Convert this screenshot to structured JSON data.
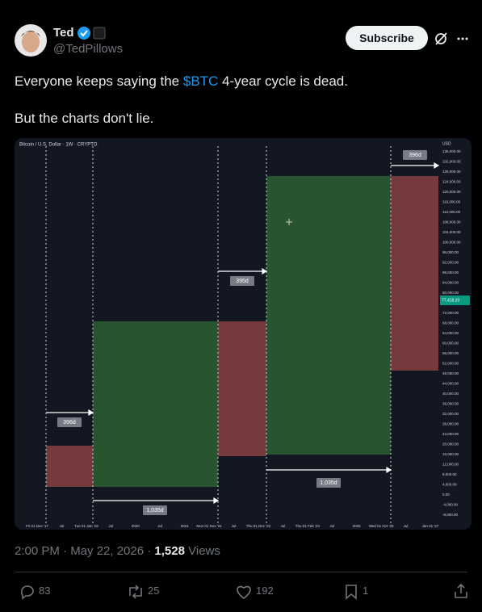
{
  "tweet": {
    "author_name": "Ted",
    "handle": "@TedPillows",
    "subscribe": "Subscribe",
    "text_before": "Everyone keeps saying the ",
    "cashtag": "$BTC",
    "text_after": " 4-year cycle is dead.",
    "text_line2": "But the charts don't lie.",
    "time": "2:00 PM · May 22, 2026 · ",
    "views_count": "1,528",
    "views_label": "Views",
    "replies": "83",
    "reposts": "25",
    "likes": "192",
    "bookmarks": "1"
  },
  "chart_image": {
    "header": "Bitcoin / U.S. Dollar · 1W · CRYPTO",
    "currency": "USD",
    "current_price": "77,418.20",
    "labels": [
      "396d",
      "1,035d",
      "395d",
      "1,035d",
      "396d"
    ],
    "y_axis": [
      "136,000.00",
      "132,000.00",
      "128,000.00",
      "124,000.00",
      "120,000.00",
      "116,000.00",
      "112,000.00",
      "108,000.00",
      "104,000.00",
      "100,000.00",
      "96,000.00",
      "92,000.00",
      "88,000.00",
      "84,000.00",
      "80,000.00",
      "76,000.00",
      "72,000.00",
      "68,000.00",
      "64,000.00",
      "60,000.00",
      "56,000.00",
      "52,000.00",
      "48,000.00",
      "44,000.00",
      "40,000.00",
      "36,000.00",
      "32,000.00",
      "28,000.00",
      "24,000.00",
      "20,000.00",
      "16,000.00",
      "12,000.00",
      "8,000.00",
      "4,000.00",
      "0.00",
      "-4,000.00",
      "-8,000.00"
    ],
    "x_axis": [
      "Fri 01 Dec '17",
      "Jul",
      "Tue 01 Jan '19",
      "Jul",
      "2020",
      "Jul",
      "2021",
      "Mon 01 Nov '21",
      "Jul",
      "Thu 01 Dec '22",
      "Jul",
      "Thu 01 Feb '24",
      "Jul",
      "2025",
      "Wed 01 Oct '25",
      "Jul",
      "Jan 01 '27"
    ]
  }
}
